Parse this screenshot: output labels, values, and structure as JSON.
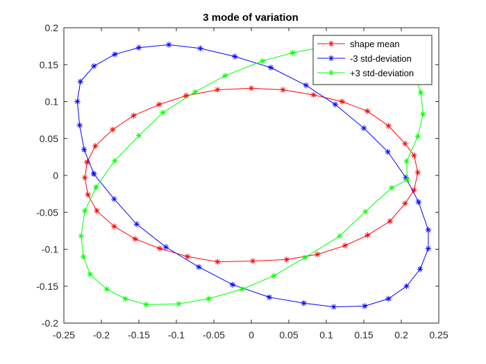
{
  "chart_data": {
    "type": "line",
    "title": "3 mode of variation",
    "xlabel": "",
    "ylabel": "",
    "xlim": [
      -0.25,
      0.25
    ],
    "ylim": [
      -0.2,
      0.2
    ],
    "xticks": [
      -0.25,
      -0.2,
      -0.15,
      -0.1,
      -0.05,
      0,
      0.05,
      0.1,
      0.15,
      0.2,
      0.25
    ],
    "xtick_labels": [
      "-0.25",
      "-0.2",
      "-0.15",
      "-0.1",
      "-0.05",
      "0",
      "0.05",
      "0.1",
      "0.15",
      "0.2",
      "0.25"
    ],
    "yticks": [
      -0.2,
      -0.15,
      -0.1,
      -0.05,
      0,
      0.05,
      0.1,
      0.15,
      0.2
    ],
    "ytick_labels": [
      "-0.2",
      "-0.15",
      "-0.1",
      "-0.05",
      "0",
      "0.05",
      "0.1",
      "0.15",
      "0.2"
    ],
    "grid": false,
    "legend_position": "top-right",
    "marker": "asterisk",
    "series": [
      {
        "name": "shape mean",
        "color": "#ff0000",
        "points": [
          [
            -0.219,
            0.018
          ],
          [
            -0.208,
            0.04
          ],
          [
            -0.185,
            0.062
          ],
          [
            -0.157,
            0.081
          ],
          [
            -0.123,
            0.096
          ],
          [
            -0.087,
            0.108
          ],
          [
            -0.045,
            0.116
          ],
          [
            0.0,
            0.118
          ],
          [
            0.042,
            0.116
          ],
          [
            0.083,
            0.109
          ],
          [
            0.121,
            0.1
          ],
          [
            0.155,
            0.087
          ],
          [
            0.183,
            0.067
          ],
          [
            0.205,
            0.043
          ],
          [
            0.217,
            0.027
          ],
          [
            0.222,
            0.004
          ],
          [
            0.217,
            -0.02
          ],
          [
            0.205,
            -0.038
          ],
          [
            0.185,
            -0.062
          ],
          [
            0.155,
            -0.081
          ],
          [
            0.125,
            -0.095
          ],
          [
            0.088,
            -0.107
          ],
          [
            0.047,
            -0.114
          ],
          [
            0.002,
            -0.116
          ],
          [
            -0.045,
            -0.117
          ],
          [
            -0.085,
            -0.11
          ],
          [
            -0.122,
            -0.099
          ],
          [
            -0.155,
            -0.086
          ],
          [
            -0.183,
            -0.069
          ],
          [
            -0.206,
            -0.048
          ],
          [
            -0.218,
            -0.026
          ],
          [
            -0.222,
            -0.003
          ],
          [
            -0.219,
            0.018
          ]
        ]
      },
      {
        "name": "-3 std-deviation",
        "color": "#0000ff",
        "points": [
          [
            -0.21,
            0.002
          ],
          [
            -0.223,
            0.035
          ],
          [
            -0.229,
            0.068
          ],
          [
            -0.232,
            0.1
          ],
          [
            -0.228,
            0.127
          ],
          [
            -0.21,
            0.148
          ],
          [
            -0.182,
            0.164
          ],
          [
            -0.15,
            0.173
          ],
          [
            -0.11,
            0.177
          ],
          [
            -0.068,
            0.172
          ],
          [
            -0.022,
            0.161
          ],
          [
            0.026,
            0.146
          ],
          [
            0.073,
            0.122
          ],
          [
            0.112,
            0.096
          ],
          [
            0.15,
            0.064
          ],
          [
            0.182,
            0.032
          ],
          [
            0.206,
            -0.003
          ],
          [
            0.223,
            -0.036
          ],
          [
            0.236,
            -0.074
          ],
          [
            0.236,
            -0.099
          ],
          [
            0.225,
            -0.127
          ],
          [
            0.207,
            -0.15
          ],
          [
            0.183,
            -0.167
          ],
          [
            0.151,
            -0.177
          ],
          [
            0.11,
            -0.178
          ],
          [
            0.07,
            -0.173
          ],
          [
            0.024,
            -0.165
          ],
          [
            -0.025,
            -0.148
          ],
          [
            -0.07,
            -0.124
          ],
          [
            -0.114,
            -0.097
          ],
          [
            -0.153,
            -0.066
          ],
          [
            -0.183,
            -0.032
          ],
          [
            -0.21,
            0.002
          ]
        ]
      },
      {
        "name": "+3 std-deviation",
        "color": "#00ff00",
        "points": [
          [
            -0.207,
            -0.016
          ],
          [
            -0.182,
            0.02
          ],
          [
            -0.15,
            0.054
          ],
          [
            -0.118,
            0.085
          ],
          [
            -0.075,
            0.113
          ],
          [
            -0.035,
            0.135
          ],
          [
            0.015,
            0.155
          ],
          [
            0.055,
            0.166
          ],
          [
            0.1,
            0.175
          ],
          [
            0.14,
            0.182
          ],
          [
            0.18,
            0.181
          ],
          [
            0.21,
            0.16
          ],
          [
            0.226,
            0.112
          ],
          [
            0.229,
            0.083
          ],
          [
            0.222,
            0.053
          ],
          [
            0.207,
            0.019
          ],
          [
            0.208,
            -0.006
          ],
          [
            0.187,
            -0.017
          ],
          [
            0.152,
            -0.049
          ],
          [
            0.118,
            -0.082
          ],
          [
            0.072,
            -0.111
          ],
          [
            0.03,
            -0.136
          ],
          [
            -0.012,
            -0.154
          ],
          [
            -0.057,
            -0.167
          ],
          [
            -0.097,
            -0.174
          ],
          [
            -0.14,
            -0.175
          ],
          [
            -0.168,
            -0.167
          ],
          [
            -0.193,
            -0.154
          ],
          [
            -0.215,
            -0.134
          ],
          [
            -0.224,
            -0.11
          ],
          [
            -0.227,
            -0.082
          ],
          [
            -0.222,
            -0.048
          ],
          [
            -0.207,
            -0.016
          ]
        ]
      }
    ]
  }
}
